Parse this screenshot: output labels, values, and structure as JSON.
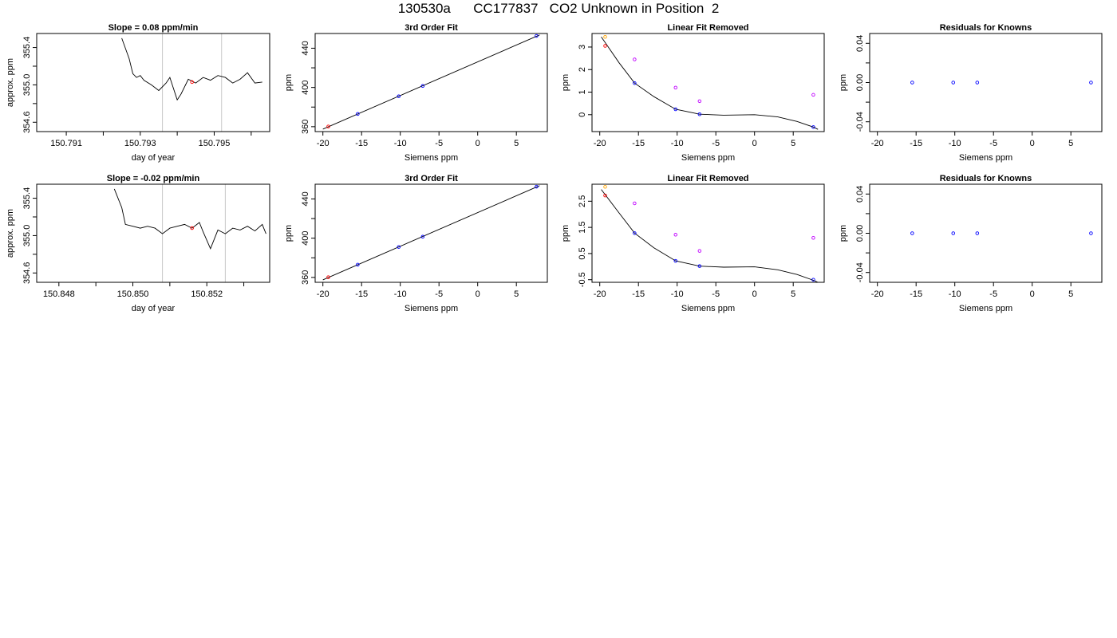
{
  "page_title": "130530a      CC177837   CO2 Unknown in Position  2",
  "colors": {
    "line": "#000000",
    "grid_vline": "#c8c8c8",
    "known": "#0000ff",
    "unknown": "#ff0000",
    "raw_known": "#c000ff",
    "raw_unknown": "#ffa500"
  },
  "chart_data": [
    {
      "type": "line",
      "title": "Slope =  0.08  ppm/min",
      "xlabel": "day of year",
      "ylabel": "approx. ppm",
      "xlim": [
        150.7902,
        150.7965
      ],
      "ylim": [
        354.5,
        355.55
      ],
      "xticks": [
        150.791,
        150.792,
        150.793,
        150.794,
        150.795,
        150.796
      ],
      "xtick_labels": [
        "150.791",
        "",
        "150.793",
        "",
        "150.795",
        ""
      ],
      "yticks": [
        354.6,
        354.8,
        355.0,
        355.2,
        355.4
      ],
      "ytick_labels": [
        "354.6",
        "",
        "355.0",
        "",
        "355.4"
      ],
      "vlines": [
        150.7936,
        150.7952
      ],
      "series": [
        {
          "x": [
            150.7925,
            150.7927,
            150.7928,
            150.7929,
            150.793,
            150.7931,
            150.7933,
            150.7935,
            150.7937,
            150.7938,
            150.794,
            150.7941,
            150.7943,
            150.7945,
            150.7947,
            150.7949,
            150.7951,
            150.7953,
            150.7955,
            150.7957,
            150.7959,
            150.7961,
            150.7963
          ],
          "y": [
            355.5,
            355.28,
            355.12,
            355.08,
            355.1,
            355.05,
            355.0,
            354.94,
            355.02,
            355.08,
            354.84,
            354.9,
            355.06,
            355.02,
            355.08,
            355.05,
            355.1,
            355.08,
            355.02,
            355.06,
            355.13,
            355.02,
            355.03
          ]
        }
      ],
      "points": [
        {
          "x": 150.7944,
          "y": 355.03,
          "color": "#ff0000"
        }
      ]
    },
    {
      "type": "scatter",
      "title": "3rd Order Fit",
      "xlabel": "Siemens ppm",
      "ylabel": "ppm",
      "xlim": [
        -21,
        9
      ],
      "ylim": [
        355,
        455
      ],
      "xticks": [
        -20,
        -15,
        -10,
        -5,
        0,
        5
      ],
      "xtick_labels": [
        "-20",
        "-15",
        "-10",
        "-5",
        "0",
        "5"
      ],
      "yticks": [
        360,
        380,
        400,
        420,
        440
      ],
      "ytick_labels": [
        "360",
        "",
        "400",
        "",
        "440"
      ],
      "fit_line": {
        "x": [
          -20,
          8
        ],
        "y": [
          357.5,
          453.5
        ]
      },
      "points": [
        {
          "x": -19.3,
          "y": 360.2,
          "color": "#ff0000"
        },
        {
          "x": -15.5,
          "y": 373.0,
          "color": "#0000ff"
        },
        {
          "x": -10.2,
          "y": 391.0,
          "color": "#0000ff"
        },
        {
          "x": -7.1,
          "y": 401.5,
          "color": "#0000ff"
        },
        {
          "x": 7.6,
          "y": 452.5,
          "color": "#0000ff"
        }
      ]
    },
    {
      "type": "scatter",
      "title": "Linear Fit Removed",
      "xlabel": "Siemens ppm",
      "ylabel": "ppm",
      "xlim": [
        -21,
        9
      ],
      "ylim": [
        -0.75,
        3.6
      ],
      "xticks": [
        -20,
        -15,
        -10,
        -5,
        0,
        5
      ],
      "xtick_labels": [
        "-20",
        "-15",
        "-10",
        "-5",
        "0",
        "5"
      ],
      "yticks": [
        0,
        1,
        2,
        3
      ],
      "ytick_labels": [
        "0",
        "1",
        "2",
        "3"
      ],
      "curve": {
        "x": [
          -19.8,
          -17.5,
          -15.5,
          -13,
          -10.2,
          -7.1,
          -4,
          0,
          3,
          5.5,
          7.6,
          8.2
        ],
        "y": [
          3.45,
          2.3,
          1.4,
          0.8,
          0.24,
          0.02,
          -0.02,
          0.0,
          -0.1,
          -0.3,
          -0.55,
          -0.65
        ]
      },
      "points": [
        {
          "x": -19.3,
          "y": 3.45,
          "color": "#ffa500"
        },
        {
          "x": -19.3,
          "y": 3.05,
          "color": "#ff0000"
        },
        {
          "x": -15.5,
          "y": 2.45,
          "color": "#c000ff"
        },
        {
          "x": -15.5,
          "y": 1.4,
          "color": "#0000ff"
        },
        {
          "x": -10.2,
          "y": 1.2,
          "color": "#c000ff"
        },
        {
          "x": -10.2,
          "y": 0.24,
          "color": "#0000ff"
        },
        {
          "x": -7.1,
          "y": 0.6,
          "color": "#c000ff"
        },
        {
          "x": -7.1,
          "y": 0.02,
          "color": "#0000ff"
        },
        {
          "x": 7.6,
          "y": 0.88,
          "color": "#c000ff"
        },
        {
          "x": 7.6,
          "y": -0.55,
          "color": "#0000ff"
        }
      ]
    },
    {
      "type": "scatter",
      "title": "Residuals for Knowns",
      "xlabel": "Siemens ppm",
      "ylabel": "ppm",
      "xlim": [
        -21,
        9
      ],
      "ylim": [
        -0.05,
        0.05
      ],
      "xticks": [
        -20,
        -15,
        -10,
        -5,
        0,
        5
      ],
      "xtick_labels": [
        "-20",
        "-15",
        "-10",
        "-5",
        "0",
        "5"
      ],
      "yticks": [
        -0.04,
        -0.02,
        0,
        0.02,
        0.04
      ],
      "ytick_labels": [
        "-0.04",
        "",
        "0.00",
        "",
        "0.04"
      ],
      "points": [
        {
          "x": -15.5,
          "y": 0,
          "color": "#0000ff"
        },
        {
          "x": -10.2,
          "y": 0,
          "color": "#0000ff"
        },
        {
          "x": -7.1,
          "y": 0,
          "color": "#0000ff"
        },
        {
          "x": 7.6,
          "y": 0,
          "color": "#0000ff"
        }
      ]
    },
    {
      "type": "line",
      "title": "Slope =  -0.02  ppm/min",
      "xlabel": "day of year",
      "ylabel": "approx. ppm",
      "xlim": [
        150.8474,
        150.8537
      ],
      "ylim": [
        354.5,
        355.55
      ],
      "xticks": [
        150.848,
        150.849,
        150.85,
        150.851,
        150.852,
        150.853
      ],
      "xtick_labels": [
        "150.848",
        "",
        "150.850",
        "",
        "150.852",
        ""
      ],
      "yticks": [
        354.6,
        354.8,
        355.0,
        355.2,
        355.4
      ],
      "ytick_labels": [
        "354.6",
        "",
        "355.0",
        "",
        "355.4"
      ],
      "vlines": [
        150.8508,
        150.8525
      ],
      "series": [
        {
          "x": [
            150.8495,
            150.8497,
            150.8498,
            150.85,
            150.8502,
            150.8504,
            150.8506,
            150.8508,
            150.851,
            150.8512,
            150.8514,
            150.8516,
            150.8518,
            150.8519,
            150.8521,
            150.8523,
            150.8525,
            150.8527,
            150.8529,
            150.8531,
            150.8533,
            150.8535,
            150.8536
          ],
          "y": [
            355.5,
            355.3,
            355.12,
            355.1,
            355.08,
            355.1,
            355.08,
            355.02,
            355.08,
            355.1,
            355.12,
            355.08,
            355.14,
            355.04,
            354.86,
            355.06,
            355.02,
            355.08,
            355.06,
            355.1,
            355.05,
            355.12,
            355.02
          ]
        }
      ],
      "points": [
        {
          "x": 150.8516,
          "y": 355.08,
          "color": "#ff0000"
        }
      ]
    },
    {
      "type": "scatter",
      "title": "3rd Order Fit",
      "xlabel": "Siemens ppm",
      "ylabel": "ppm",
      "xlim": [
        -21,
        9
      ],
      "ylim": [
        355,
        455
      ],
      "xticks": [
        -20,
        -15,
        -10,
        -5,
        0,
        5
      ],
      "xtick_labels": [
        "-20",
        "-15",
        "-10",
        "-5",
        "0",
        "5"
      ],
      "yticks": [
        360,
        380,
        400,
        420,
        440
      ],
      "ytick_labels": [
        "360",
        "",
        "400",
        "",
        "440"
      ],
      "fit_line": {
        "x": [
          -20,
          8
        ],
        "y": [
          357.5,
          453.5
        ]
      },
      "points": [
        {
          "x": -19.3,
          "y": 360.2,
          "color": "#ff0000"
        },
        {
          "x": -15.5,
          "y": 373.0,
          "color": "#0000ff"
        },
        {
          "x": -10.2,
          "y": 391.0,
          "color": "#0000ff"
        },
        {
          "x": -7.1,
          "y": 401.5,
          "color": "#0000ff"
        },
        {
          "x": 7.6,
          "y": 452.5,
          "color": "#0000ff"
        }
      ]
    },
    {
      "type": "scatter",
      "title": "Linear Fit Removed",
      "xlabel": "Siemens ppm",
      "ylabel": "ppm",
      "xlim": [
        -21,
        9
      ],
      "ylim": [
        -0.6,
        3.15
      ],
      "xticks": [
        -20,
        -15,
        -10,
        -5,
        0,
        5
      ],
      "xtick_labels": [
        "-20",
        "-15",
        "-10",
        "-5",
        "0",
        "5"
      ],
      "yticks": [
        -0.5,
        0.5,
        1.5,
        2.5
      ],
      "ytick_labels": [
        "-0.5",
        "0.5",
        "1.5",
        "2.5"
      ],
      "curve": {
        "x": [
          -19.8,
          -17.5,
          -15.5,
          -13,
          -10.2,
          -7.1,
          -4,
          0,
          3,
          5.5,
          7.6,
          8.2
        ],
        "y": [
          2.95,
          2.05,
          1.28,
          0.72,
          0.22,
          0.02,
          -0.02,
          -0.01,
          -0.12,
          -0.3,
          -0.52,
          -0.6
        ]
      },
      "points": [
        {
          "x": -19.3,
          "y": 3.05,
          "color": "#ffa500"
        },
        {
          "x": -19.3,
          "y": 2.72,
          "color": "#ff0000"
        },
        {
          "x": -15.5,
          "y": 2.42,
          "color": "#c000ff"
        },
        {
          "x": -15.5,
          "y": 1.28,
          "color": "#0000ff"
        },
        {
          "x": -10.2,
          "y": 1.22,
          "color": "#c000ff"
        },
        {
          "x": -10.2,
          "y": 0.22,
          "color": "#0000ff"
        },
        {
          "x": -7.1,
          "y": 0.6,
          "color": "#c000ff"
        },
        {
          "x": -7.1,
          "y": 0.02,
          "color": "#0000ff"
        },
        {
          "x": 7.6,
          "y": 1.1,
          "color": "#c000ff"
        },
        {
          "x": 7.6,
          "y": -0.5,
          "color": "#0000ff"
        }
      ]
    },
    {
      "type": "scatter",
      "title": "Residuals for Knowns",
      "xlabel": "Siemens ppm",
      "ylabel": "ppm",
      "xlim": [
        -21,
        9
      ],
      "ylim": [
        -0.05,
        0.05
      ],
      "xticks": [
        -20,
        -15,
        -10,
        -5,
        0,
        5
      ],
      "xtick_labels": [
        "-20",
        "-15",
        "-10",
        "-5",
        "0",
        "5"
      ],
      "yticks": [
        -0.04,
        -0.02,
        0,
        0.02,
        0.04
      ],
      "ytick_labels": [
        "-0.04",
        "",
        "0.00",
        "",
        "0.04"
      ],
      "points": [
        {
          "x": -15.5,
          "y": 0,
          "color": "#0000ff"
        },
        {
          "x": -10.2,
          "y": 0,
          "color": "#0000ff"
        },
        {
          "x": -7.1,
          "y": 0,
          "color": "#0000ff"
        },
        {
          "x": 7.6,
          "y": 0,
          "color": "#0000ff"
        }
      ]
    }
  ]
}
